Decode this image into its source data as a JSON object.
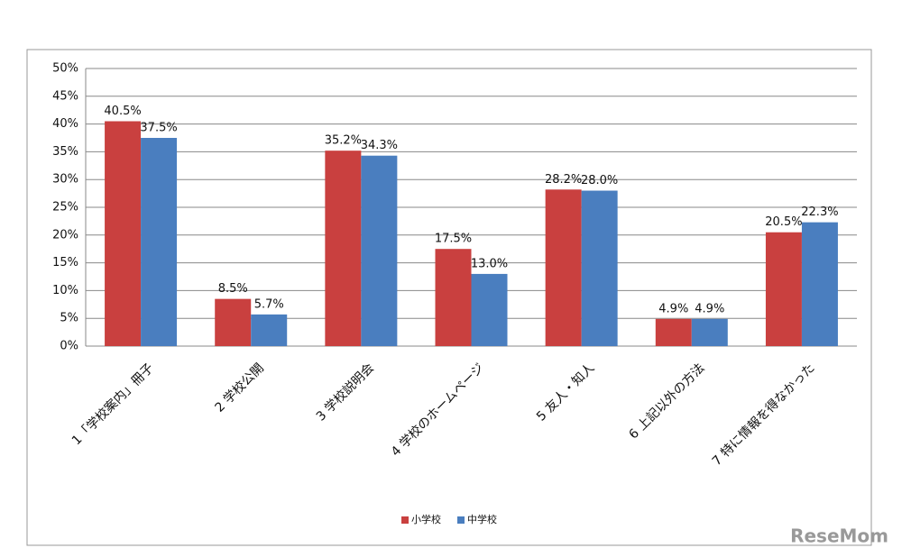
{
  "chart_data": {
    "type": "bar",
    "categories": [
      "1「学校案内」冊子",
      "2 学校公開",
      "3 学校説明会",
      "4 学校のホームページ",
      "5 友人・知人",
      "6 上記以外の方法",
      "7 特に情報を得なかった"
    ],
    "series": [
      {
        "name": "小学校",
        "color": "#c9403f",
        "values": [
          40.5,
          8.5,
          35.2,
          17.5,
          28.2,
          4.9,
          20.5
        ],
        "value_labels": [
          "40.5%",
          "8.5%",
          "35.2%",
          "17.5%",
          "28.2%",
          "4.9%",
          "20.5%"
        ]
      },
      {
        "name": "中学校",
        "color": "#4a7ebf",
        "values": [
          37.5,
          5.7,
          34.3,
          13.0,
          28.0,
          4.9,
          22.3
        ],
        "value_labels": [
          "37.5%",
          "5.7%",
          "34.3%",
          "13.0%",
          "28.0%",
          "4.9%",
          "22.3%"
        ]
      }
    ],
    "ylim": [
      0,
      50
    ],
    "yticks": [
      {
        "value": 0,
        "label": "0%"
      },
      {
        "value": 5,
        "label": "5%"
      },
      {
        "value": 10,
        "label": "10%"
      },
      {
        "value": 15,
        "label": "15%"
      },
      {
        "value": 20,
        "label": "20%"
      },
      {
        "value": 25,
        "label": "25%"
      },
      {
        "value": 30,
        "label": "30%"
      },
      {
        "value": 35,
        "label": "35%"
      },
      {
        "value": 40,
        "label": "40%"
      },
      {
        "value": 45,
        "label": "45%"
      },
      {
        "value": 50,
        "label": "50%"
      }
    ],
    "grid": true,
    "legend": "bottom",
    "watermark": "ReseMom"
  }
}
